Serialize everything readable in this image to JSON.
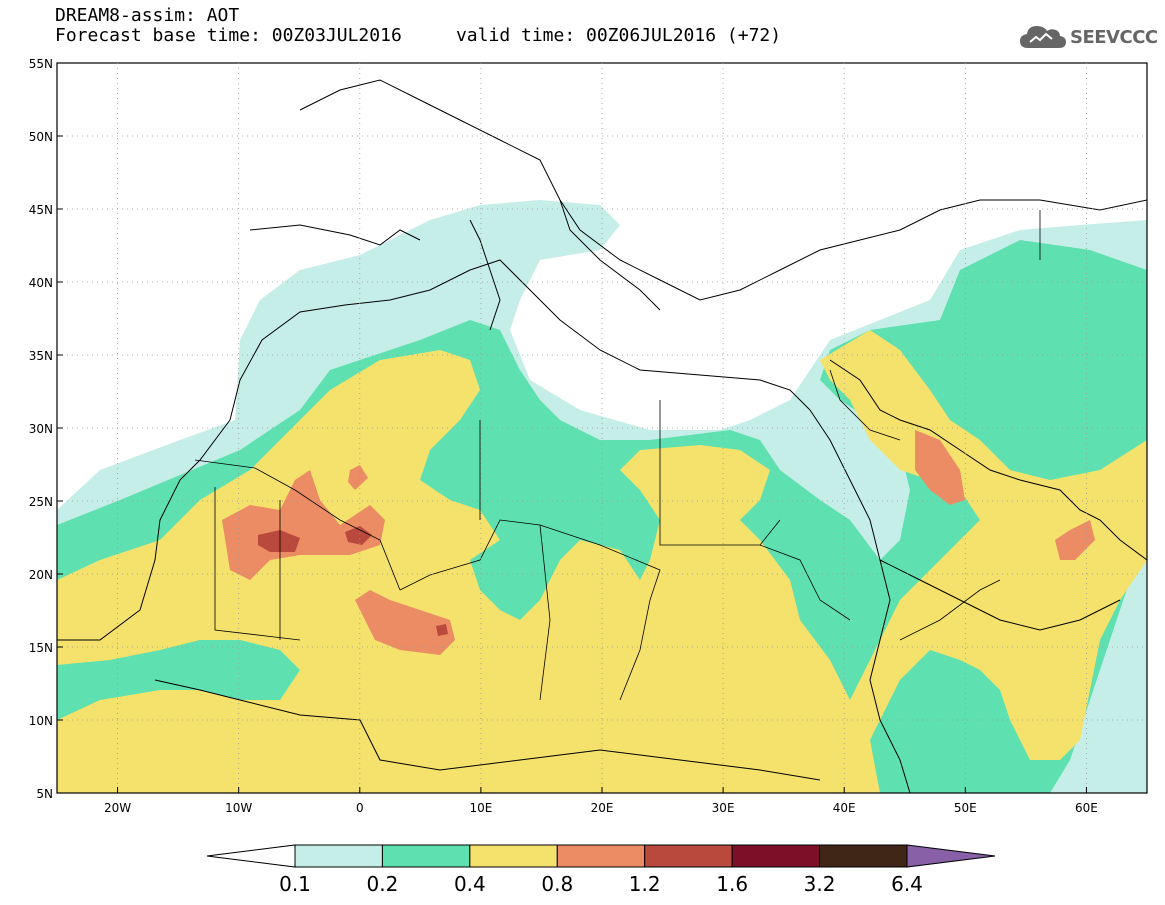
{
  "header": {
    "line1": "DREAM8-assim: AOT",
    "base_time_label": "Forecast base time: 00Z03JUL2016",
    "valid_time_label": "valid time: 00Z06JUL2016 (+72)"
  },
  "logo": {
    "text": "SEEVCCC",
    "icon": "cloud-icon",
    "color": "#666666"
  },
  "map": {
    "lon_range": [
      -25,
      65
    ],
    "lat_range": [
      5,
      55
    ],
    "lat_ticks": [
      {
        "value": 55,
        "label": "55N"
      },
      {
        "value": 50,
        "label": "50N"
      },
      {
        "value": 45,
        "label": "45N"
      },
      {
        "value": 40,
        "label": "40N"
      },
      {
        "value": 35,
        "label": "35N"
      },
      {
        "value": 30,
        "label": "30N"
      },
      {
        "value": 25,
        "label": "25N"
      },
      {
        "value": 20,
        "label": "20N"
      },
      {
        "value": 15,
        "label": "15N"
      },
      {
        "value": 10,
        "label": "10N"
      },
      {
        "value": 5,
        "label": "5N"
      }
    ],
    "lon_ticks": [
      {
        "value": -20,
        "label": "20W"
      },
      {
        "value": -10,
        "label": "10W"
      },
      {
        "value": 0,
        "label": "0"
      },
      {
        "value": 10,
        "label": "10E"
      },
      {
        "value": 20,
        "label": "20E"
      },
      {
        "value": 30,
        "label": "30E"
      },
      {
        "value": 40,
        "label": "40E"
      },
      {
        "value": 50,
        "label": "50E"
      },
      {
        "value": 60,
        "label": "60E"
      }
    ],
    "grid": "dotted"
  },
  "colorbar": {
    "thresholds": [
      "0.1",
      "0.2",
      "0.4",
      "0.8",
      "1.2",
      "1.6",
      "3.2",
      "6.4"
    ],
    "colors": [
      "#ffffff",
      "#c6eee8",
      "#5ee0b0",
      "#f4e26c",
      "#eb8c64",
      "#b9493c",
      "#7d0f28",
      "#3f2617",
      "#8860a8"
    ]
  }
}
